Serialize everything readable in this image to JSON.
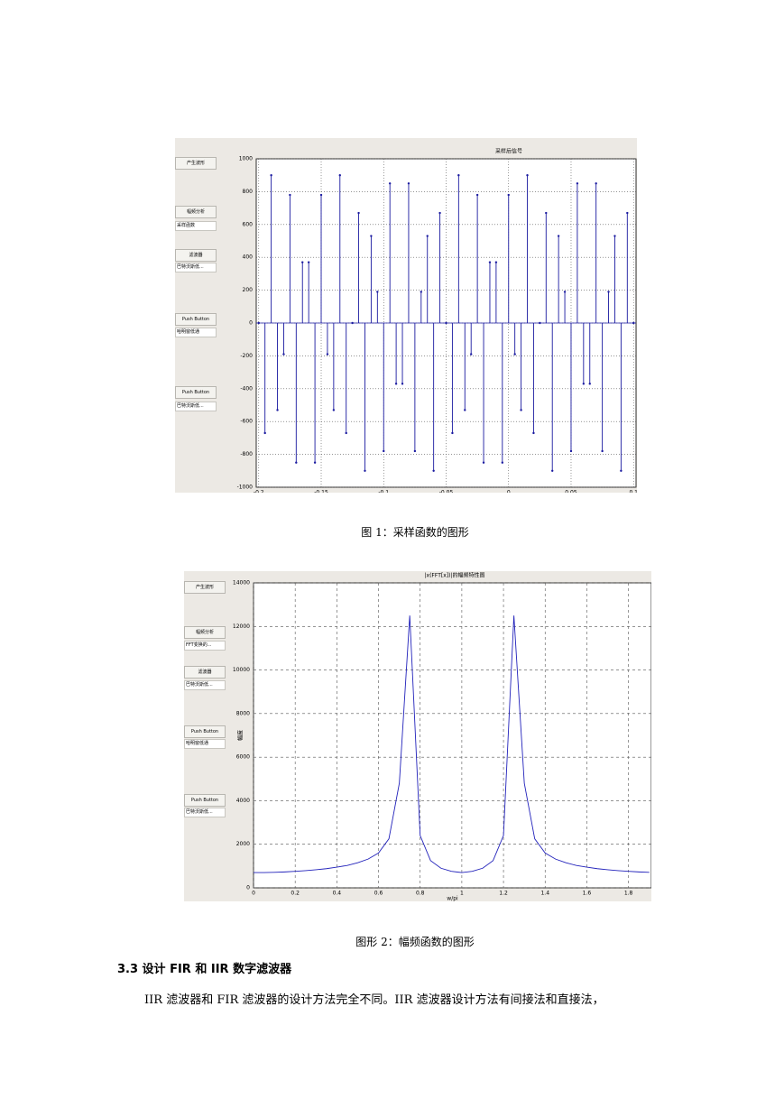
{
  "figures": [
    {
      "controls": [
        "产生波形",
        "幅频分析",
        "采样函数",
        "滤波器",
        "巴特沃斯低...",
        "Push Button",
        "哈明窗低通",
        "Push Button",
        "巴特沃斯低..."
      ],
      "chart_data": {
        "type": "stem",
        "title": "采样后信号",
        "color": "#1a1aa0",
        "grid": true,
        "x": [
          -0.2,
          -0.195,
          -0.19,
          -0.185,
          -0.18,
          -0.175,
          -0.17,
          -0.165,
          -0.16,
          -0.155,
          -0.15,
          -0.145,
          -0.14,
          -0.135,
          -0.13,
          -0.125,
          -0.12,
          -0.115,
          -0.11,
          -0.105,
          -0.1,
          -0.095,
          -0.09,
          -0.085,
          -0.08,
          -0.075,
          -0.07,
          -0.065,
          -0.06,
          -0.055,
          -0.05,
          -0.045,
          -0.04,
          -0.035,
          -0.03,
          -0.025,
          -0.02,
          -0.015,
          -0.01,
          -0.005,
          0,
          0.005,
          0.01,
          0.015,
          0.02,
          0.025,
          0.03,
          0.035,
          0.04,
          0.045,
          0.05,
          0.055,
          0.06,
          0.065,
          0.07,
          0.075,
          0.08,
          0.085,
          0.09,
          0.095,
          0.1
        ],
        "values": [
          0,
          -670,
          900,
          -530,
          -190,
          780,
          -850,
          370,
          370,
          -850,
          780,
          -190,
          -530,
          900,
          -670,
          0,
          670,
          -900,
          530,
          190,
          -780,
          850,
          -370,
          -370,
          850,
          -780,
          190,
          530,
          -900,
          670,
          0,
          -670,
          900,
          -530,
          -190,
          780,
          -850,
          370,
          370,
          -850,
          780,
          -190,
          -530,
          900,
          -670,
          0,
          670,
          -900,
          530,
          190,
          -780,
          850,
          -370,
          -370,
          850,
          -780,
          190,
          530,
          -900,
          670,
          0
        ],
        "xlim": [
          -0.202,
          0.102
        ],
        "xticks": [
          -0.2,
          -0.15,
          -0.1,
          -0.05,
          0,
          0.05,
          0.1
        ],
        "ylim": [
          -1000,
          1000
        ],
        "yticks": [
          -1000,
          -800,
          -600,
          -400,
          -200,
          0,
          200,
          400,
          600,
          800,
          1000
        ]
      },
      "caption": "图 1：采样函数的图形"
    },
    {
      "controls": [
        "产生波形",
        "幅频分析",
        "FFT变换的...",
        "滤波器",
        "巴特沃斯低...",
        "Push Button",
        "哈明窗低通",
        "Push Button",
        "巴特沃斯低..."
      ],
      "chart_data": {
        "type": "line",
        "title": "|x(FFT[x])|的幅频特性图",
        "x_label": "w/pi",
        "y_label": "幅度",
        "color": "#2222bb",
        "grid": true,
        "x": [
          0,
          0.05,
          0.1,
          0.15,
          0.2,
          0.25,
          0.3,
          0.35,
          0.4,
          0.45,
          0.5,
          0.55,
          0.6,
          0.65,
          0.7,
          0.75,
          0.8,
          0.85,
          0.9,
          0.95,
          1,
          1.05,
          1.1,
          1.15,
          1.2,
          1.25,
          1.3,
          1.35,
          1.4,
          1.45,
          1.5,
          1.55,
          1.6,
          1.65,
          1.7,
          1.75,
          1.8,
          1.85,
          1.9
        ],
        "values": [
          700,
          700,
          710,
          730,
          760,
          790,
          830,
          880,
          950,
          1030,
          1150,
          1320,
          1600,
          2250,
          4800,
          12500,
          2400,
          1250,
          900,
          760,
          700,
          760,
          900,
          1250,
          2400,
          12500,
          4800,
          2250,
          1600,
          1320,
          1150,
          1030,
          950,
          880,
          830,
          790,
          760,
          730,
          710
        ],
        "xlim": [
          0,
          1.91
        ],
        "xticks": [
          0,
          0.2,
          0.4,
          0.6,
          0.8,
          1,
          1.2,
          1.4,
          1.6,
          1.8
        ],
        "ylim": [
          0,
          14000
        ],
        "yticks": [
          0,
          2000,
          4000,
          6000,
          8000,
          10000,
          12000,
          14000
        ]
      },
      "caption": "图形 2：幅频函数的图形"
    }
  ],
  "heading": "3.3 设计 FIR 和 IIR 数字滤波器",
  "paragraph": "IIR 滤波器和 FIR 滤波器的设计方法完全不同。IIR 滤波器设计方法有间接法和直接法，"
}
